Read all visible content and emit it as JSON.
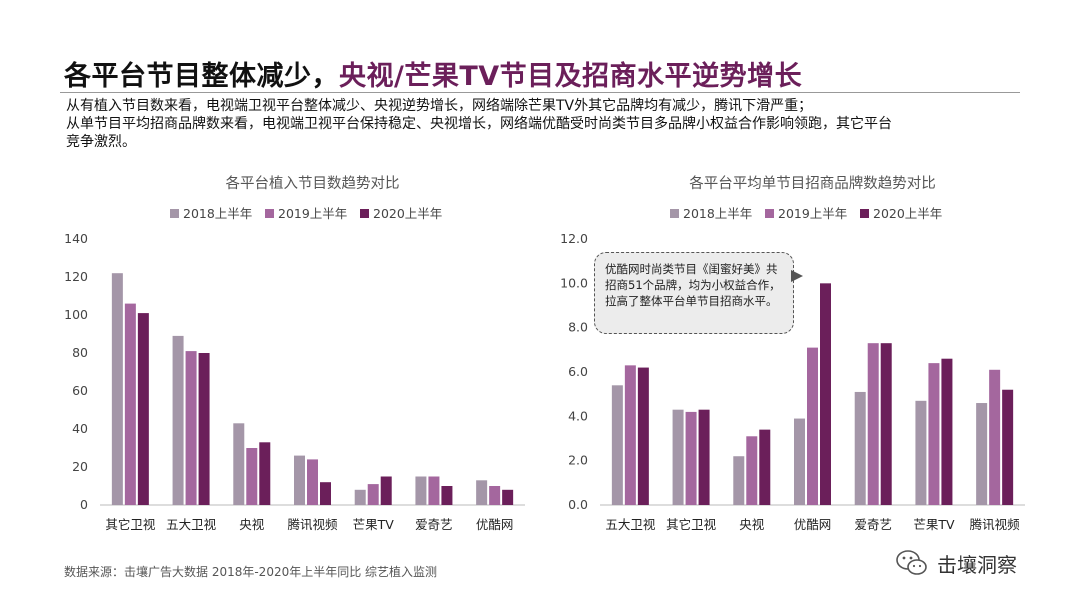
{
  "title": {
    "part1": "各平台节目整体减少，",
    "part2": "央视/芒果TV节目及招商水平逆势增长"
  },
  "description": [
    "从有植入节目数来看，电视端卫视平台整体减少、央视逆势增长，网络端除芒果TV外其它品牌均有减少，腾讯下滑严重；",
    "从单节目平均招商品牌数来看，电视端卫视平台保持稳定、央视增长，网络端优酷受时尚类节目多品牌小权益合作影响领跑，其它平台",
    "竞争激烈。"
  ],
  "colors": {
    "accent": "#6b1f5a",
    "series": [
      "#a496a8",
      "#a4679e",
      "#6b1f5a"
    ]
  },
  "chart_data": [
    {
      "type": "bar",
      "title": "各平台植入节目数趋势对比",
      "categories": [
        "其它卫视",
        "五大卫视",
        "央视",
        "腾讯视频",
        "芒果TV",
        "爱奇艺",
        "优酷网"
      ],
      "series": [
        {
          "name": "2018上半年",
          "values": [
            122,
            89,
            43,
            26,
            8,
            15,
            13
          ]
        },
        {
          "name": "2019上半年",
          "values": [
            106,
            81,
            30,
            24,
            11,
            15,
            10
          ]
        },
        {
          "name": "2020上半年",
          "values": [
            101,
            80,
            33,
            12,
            15,
            10,
            8
          ]
        }
      ],
      "ylim": [
        0,
        140
      ],
      "yticks": [
        "0",
        "20",
        "40",
        "60",
        "80",
        "100",
        "120",
        "140"
      ],
      "legend": "top",
      "grid": false
    },
    {
      "type": "bar",
      "title": "各平台平均单节目招商品牌数趋势对比",
      "categories": [
        "五大卫视",
        "其它卫视",
        "央视",
        "优酷网",
        "爱奇艺",
        "芒果TV",
        "腾讯视频"
      ],
      "series": [
        {
          "name": "2018上半年",
          "values": [
            5.4,
            4.3,
            2.2,
            3.9,
            5.1,
            4.7,
            4.6
          ]
        },
        {
          "name": "2019上半年",
          "values": [
            6.3,
            4.2,
            3.1,
            7.1,
            7.3,
            6.4,
            6.1
          ]
        },
        {
          "name": "2020上半年",
          "values": [
            6.2,
            4.3,
            3.4,
            10.0,
            7.3,
            6.6,
            5.2
          ]
        }
      ],
      "ylim": [
        0,
        12
      ],
      "yticks": [
        "0.0",
        "2.0",
        "4.0",
        "6.0",
        "8.0",
        "10.0",
        "12.0"
      ],
      "legend": "top",
      "grid": false,
      "annotation": "优酷网时尚类节目《闺蜜好美》共招商51个品牌，均为小权益合作，拉高了整体平台单节目招商水平。"
    }
  ],
  "footer": {
    "source": "数据来源：击壤广告大数据 2018年-2020年上半年同比 综艺植入监测",
    "brand": "击壤洞察",
    "brand_icon": "wechat-icon"
  }
}
